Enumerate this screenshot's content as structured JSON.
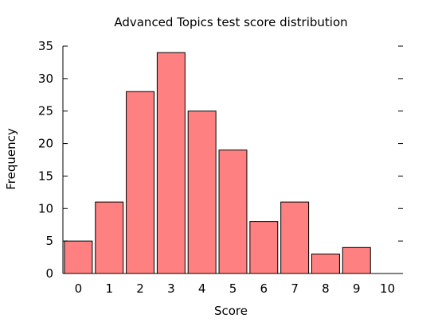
{
  "chart_data": {
    "type": "bar",
    "title": "Advanced Topics test score distribution",
    "xlabel": "Score",
    "ylabel": "Frequency",
    "categories": [
      "0",
      "1",
      "2",
      "3",
      "4",
      "5",
      "6",
      "7",
      "8",
      "9",
      "10"
    ],
    "values": [
      5,
      11,
      28,
      34,
      25,
      19,
      8,
      11,
      3,
      4,
      0
    ],
    "ylim": [
      0,
      35
    ],
    "yticks": [
      0,
      5,
      10,
      15,
      20,
      25,
      30,
      35
    ],
    "grid": false,
    "legend": "none",
    "colors": {
      "bar_fill": "#ff8080",
      "bar_stroke": "#000000",
      "axis": "#000000"
    }
  }
}
